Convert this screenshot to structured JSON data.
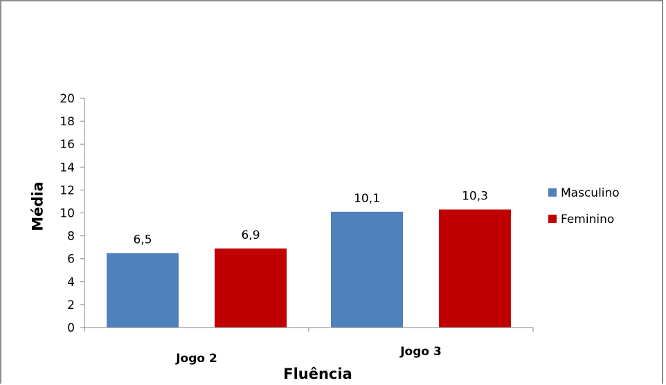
{
  "chart_data": {
    "type": "bar",
    "categories": [
      "Jogo  2",
      "Jogo  3"
    ],
    "series": [
      {
        "name": "Masculino",
        "values": [
          6.5,
          10.1
        ],
        "labels": [
          "6,5",
          "10,1"
        ],
        "color": "#4f81bd"
      },
      {
        "name": "Feminino",
        "values": [
          6.9,
          10.3
        ],
        "labels": [
          "6,9",
          "10,3"
        ],
        "color": "#c00000"
      }
    ],
    "xlabel": "Fluência",
    "ylabel": "Média",
    "ylim": [
      0,
      20
    ],
    "yticks": [
      0,
      2,
      4,
      6,
      8,
      10,
      12,
      14,
      16,
      18,
      20
    ],
    "grid": false,
    "legend_position": "right"
  }
}
